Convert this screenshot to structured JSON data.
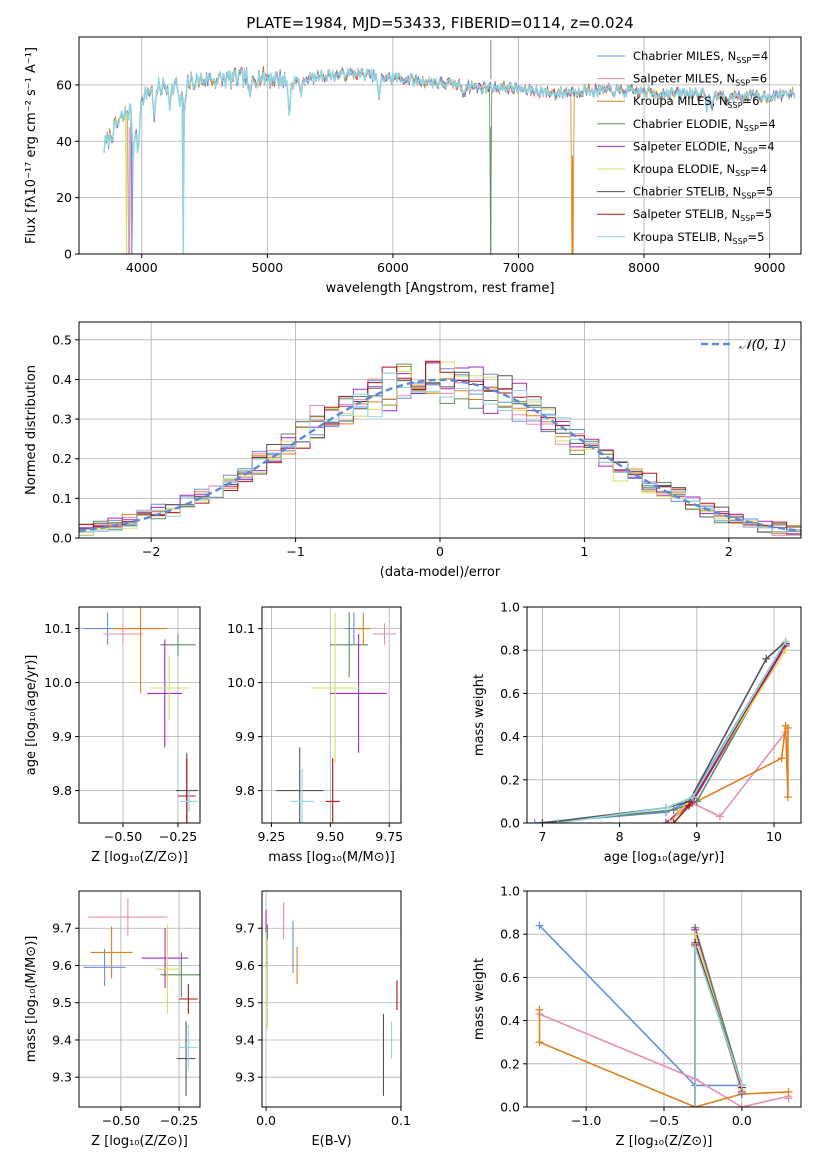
{
  "title": "PLATE=1984, MJD=53433, FIBERID=0114, z=0.024",
  "models": [
    {
      "name": "Chabrier MILES, N_SSP=4",
      "base": "Chabrier MILES, N",
      "sub": "SSP",
      "suffix": "=4",
      "color": "#6a8fdc"
    },
    {
      "name": "Salpeter MILES, N_SSP=6",
      "base": "Salpeter MILES, N",
      "sub": "SSP",
      "suffix": "=6",
      "color": "#e58fb5"
    },
    {
      "name": "Kroupa MILES, N_SSP=6",
      "base": "Kroupa MILES, N",
      "sub": "SSP",
      "suffix": "=6",
      "color": "#e0801c"
    },
    {
      "name": "Chabrier ELODIE, N_SSP=4",
      "base": "Chabrier ELODIE, N",
      "sub": "SSP",
      "suffix": "=4",
      "color": "#5f8c5f"
    },
    {
      "name": "Salpeter ELODIE, N_SSP=4",
      "base": "Salpeter ELODIE, N",
      "sub": "SSP",
      "suffix": "=4",
      "color": "#a52ac0"
    },
    {
      "name": "Kroupa ELODIE, N_SSP=4",
      "base": "Kroupa ELODIE, N",
      "sub": "SSP",
      "suffix": "=4",
      "color": "#d7df5c"
    },
    {
      "name": "Chabrier STELIB, N_SSP=5",
      "base": "Chabrier STELIB, N",
      "sub": "SSP",
      "suffix": "=5",
      "color": "#555555"
    },
    {
      "name": "Salpeter STELIB, N_SSP=5",
      "base": "Salpeter STELIB, N",
      "sub": "SSP",
      "suffix": "=5",
      "color": "#b01515"
    },
    {
      "name": "Kroupa STELIB, N_SSP=5",
      "base": "Kroupa STELIB, N",
      "sub": "SSP",
      "suffix": "=5",
      "color": "#8fd6e0"
    }
  ],
  "chart_data": [
    {
      "id": "spectrum",
      "type": "line",
      "xlabel": "wavelength [Angstrom, rest frame]",
      "ylabel": "Flux [fλ10⁻¹⁷ erg cm⁻² s⁻¹ A⁻¹]",
      "xlim": [
        3500,
        9250
      ],
      "ylim": [
        0,
        77
      ],
      "xticks": [
        4000,
        5000,
        6000,
        7000,
        8000,
        9000
      ],
      "yticks": [
        0,
        20,
        40,
        60
      ],
      "x_range": [
        3700,
        9200
      ],
      "continuum": [
        [
          3700,
          38
        ],
        [
          3750,
          42
        ],
        [
          3820,
          47
        ],
        [
          3900,
          51
        ],
        [
          3960,
          50
        ],
        [
          4050,
          58
        ],
        [
          4150,
          59
        ],
        [
          4300,
          60
        ],
        [
          4500,
          62
        ],
        [
          4700,
          62
        ],
        [
          4900,
          63
        ],
        [
          5100,
          62
        ],
        [
          5200,
          61
        ],
        [
          5400,
          63
        ],
        [
          5700,
          64
        ],
        [
          5900,
          63
        ],
        [
          6100,
          62
        ],
        [
          6300,
          61
        ],
        [
          6500,
          60
        ],
        [
          6700,
          59
        ],
        [
          6900,
          59
        ],
        [
          7100,
          58
        ],
        [
          7300,
          57
        ],
        [
          7500,
          58
        ],
        [
          7800,
          58
        ],
        [
          8100,
          57
        ],
        [
          8400,
          57
        ],
        [
          8700,
          56
        ],
        [
          9000,
          56
        ],
        [
          9200,
          57
        ]
      ],
      "absorption_lines": [
        [
          3934,
          16
        ],
        [
          3969,
          14
        ],
        [
          4102,
          9
        ],
        [
          4227,
          5
        ],
        [
          4306,
          8
        ],
        [
          4340,
          12
        ],
        [
          4861,
          9
        ],
        [
          5175,
          10
        ],
        [
          5270,
          4
        ],
        [
          5890,
          8
        ],
        [
          6563,
          3
        ],
        [
          8498,
          4
        ],
        [
          8542,
          5
        ],
        [
          8662,
          4
        ]
      ],
      "peaks": [
        [
          6780,
          76
        ]
      ],
      "edge_drops": [
        [
          0,
          3920,
          40
        ],
        [
          1,
          3900,
          45
        ],
        [
          5,
          3880,
          50
        ],
        [
          8,
          4330,
          55
        ],
        [
          2,
          7430,
          35
        ],
        [
          3,
          6780,
          45
        ]
      ]
    },
    {
      "id": "residual-histogram",
      "type": "histogram",
      "xlabel": "(data-model)/error",
      "ylabel": "Normed distribution",
      "xlim": [
        -2.5,
        2.5
      ],
      "ylim": [
        0,
        0.545
      ],
      "xticks": [
        -2,
        -1,
        0,
        1,
        2
      ],
      "yticks": [
        0.0,
        0.1,
        0.2,
        0.3,
        0.4,
        0.5
      ],
      "bin_width": 0.1,
      "reference_curve": {
        "label": "N(0,1)",
        "label_tex": "𝒩(0, 1)",
        "mean": 0,
        "sigma": 1,
        "color": "#5b8ad8"
      }
    },
    {
      "id": "age-vs-Z",
      "type": "errorbar",
      "xlabel": "Z [log₁₀(Z/Z⊙)]",
      "ylabel": "age  [log₁₀(age/yr)]",
      "xlim": [
        -0.7,
        -0.15
      ],
      "ylim": [
        9.74,
        10.14
      ],
      "xticks": [
        -0.5,
        -0.25
      ],
      "yticks": [
        9.8,
        9.9,
        10.0,
        10.1
      ],
      "points": [
        {
          "m": 0,
          "x": -0.57,
          "y": 10.1,
          "xerr": 0.11,
          "yerr": 0.03
        },
        {
          "m": 1,
          "x": -0.5,
          "y": 10.09,
          "xerr": 0.09,
          "yerr": 0.02
        },
        {
          "m": 2,
          "x": -0.42,
          "y": 10.1,
          "xerr": 0.12,
          "yerr": 0.12
        },
        {
          "m": 3,
          "x": -0.25,
          "y": 10.07,
          "xerr": 0.08,
          "yerr": 0.02
        },
        {
          "m": 4,
          "x": -0.31,
          "y": 9.98,
          "xerr": 0.08,
          "yerr": 0.1
        },
        {
          "m": 5,
          "x": -0.29,
          "y": 9.99,
          "xerr": 0.09,
          "yerr": 0.06
        },
        {
          "m": 6,
          "x": -0.21,
          "y": 9.8,
          "xerr": 0.05,
          "yerr": 0.07
        },
        {
          "m": 7,
          "x": -0.21,
          "y": 9.79,
          "xerr": 0.04,
          "yerr": 0.07
        },
        {
          "m": 8,
          "x": -0.2,
          "y": 9.78,
          "xerr": 0.04,
          "yerr": 0.02
        }
      ]
    },
    {
      "id": "age-vs-mass",
      "type": "errorbar",
      "xlabel": "mass [log₁₀(M/M⊙)]",
      "ylabel": "",
      "xlim": [
        9.21,
        9.8
      ],
      "ylim": [
        9.74,
        10.14
      ],
      "xticks": [
        9.25,
        9.5,
        9.75
      ],
      "yticks": [
        9.8,
        9.9,
        10.0,
        10.1
      ],
      "points": [
        {
          "m": 0,
          "x": 9.6,
          "y": 10.1,
          "xerr": 0.04,
          "yerr": 0.03
        },
        {
          "m": 1,
          "x": 9.73,
          "y": 10.09,
          "xerr": 0.05,
          "yerr": 0.02
        },
        {
          "m": 2,
          "x": 9.64,
          "y": 10.1,
          "xerr": 0.03,
          "yerr": 0.03
        },
        {
          "m": 3,
          "x": 9.58,
          "y": 10.07,
          "xerr": 0.08,
          "yerr": 0.06
        },
        {
          "m": 4,
          "x": 9.62,
          "y": 9.98,
          "xerr": 0.12,
          "yerr": 0.11
        },
        {
          "m": 5,
          "x": 9.52,
          "y": 9.99,
          "xerr": 0.1,
          "yerr": 0.14
        },
        {
          "m": 6,
          "x": 9.37,
          "y": 9.8,
          "xerr": 0.1,
          "yerr": 0.08
        },
        {
          "m": 7,
          "x": 9.51,
          "y": 9.78,
          "xerr": 0.03,
          "yerr": 0.08
        },
        {
          "m": 8,
          "x": 9.38,
          "y": 9.78,
          "xerr": 0.05,
          "yerr": 0.06
        }
      ]
    },
    {
      "id": "massweight-vs-age",
      "type": "line",
      "xlabel": "age  [log₁₀(age/yr)]",
      "ylabel": "mass weight",
      "xlim": [
        6.8,
        10.35
      ],
      "ylim": [
        0,
        1
      ],
      "xticks": [
        7,
        8,
        9,
        10
      ],
      "yticks": [
        0.0,
        0.2,
        0.4,
        0.6,
        0.8,
        1.0
      ],
      "series": [
        {
          "m": 0,
          "x": [
            6.9,
            8.6,
            8.9,
            10.15
          ],
          "y": [
            0.0,
            0.05,
            0.1,
            0.84
          ]
        },
        {
          "m": 1,
          "x": [
            8.6,
            8.9,
            9.3,
            10.15
          ],
          "y": [
            0.0,
            0.1,
            0.03,
            0.42
          ]
        },
        {
          "m": 2,
          "x": [
            8.6,
            9.0,
            10.1,
            10.15,
            10.18,
            10.18
          ],
          "y": [
            0.0,
            0.1,
            0.3,
            0.45,
            0.12,
            0.44
          ]
        },
        {
          "m": 3,
          "x": [
            7.0,
            8.7,
            9.0,
            10.15
          ],
          "y": [
            0.0,
            0.06,
            0.1,
            0.83
          ]
        },
        {
          "m": 4,
          "x": [
            8.6,
            8.95,
            10.15
          ],
          "y": [
            0.0,
            0.1,
            0.82
          ]
        },
        {
          "m": 5,
          "x": [
            8.65,
            8.95,
            10.15
          ],
          "y": [
            0.0,
            0.12,
            0.8
          ]
        },
        {
          "m": 6,
          "x": [
            7.0,
            8.6,
            8.9,
            9.9,
            10.15
          ],
          "y": [
            0.0,
            0.07,
            0.1,
            0.76,
            0.84
          ]
        },
        {
          "m": 7,
          "x": [
            8.7,
            8.9,
            10.15
          ],
          "y": [
            0.0,
            0.08,
            0.83
          ]
        },
        {
          "m": 8,
          "x": [
            7.2,
            8.6,
            8.95,
            10.15
          ],
          "y": [
            0.0,
            0.07,
            0.12,
            0.84
          ]
        }
      ]
    },
    {
      "id": "mass-vs-Z",
      "type": "errorbar",
      "xlabel": "Z [log₁₀(Z/Z⊙)]",
      "ylabel": "mass [log₁₀(M/M⊙)]",
      "xlim": [
        -0.68,
        -0.16
      ],
      "ylim": [
        9.22,
        9.8
      ],
      "xticks": [
        -0.5,
        -0.25
      ],
      "yticks": [
        9.3,
        9.4,
        9.5,
        9.6,
        9.7
      ],
      "points": [
        {
          "m": 0,
          "x": -0.57,
          "y": 9.595,
          "xerr": 0.09,
          "yerr": 0.05
        },
        {
          "m": 1,
          "x": -0.47,
          "y": 9.73,
          "xerr": 0.17,
          "yerr": 0.05
        },
        {
          "m": 2,
          "x": -0.54,
          "y": 9.635,
          "xerr": 0.09,
          "yerr": 0.07
        },
        {
          "m": 3,
          "x": -0.24,
          "y": 9.575,
          "xerr": 0.09,
          "yerr": 0.06
        },
        {
          "m": 4,
          "x": -0.31,
          "y": 9.62,
          "xerr": 0.1,
          "yerr": 0.08
        },
        {
          "m": 5,
          "x": -0.3,
          "y": 9.59,
          "xerr": 0.05,
          "yerr": 0.12
        },
        {
          "m": 6,
          "x": -0.22,
          "y": 9.35,
          "xerr": 0.04,
          "yerr": 0.1
        },
        {
          "m": 7,
          "x": -0.21,
          "y": 9.51,
          "xerr": 0.04,
          "yerr": 0.04
        },
        {
          "m": 8,
          "x": -0.21,
          "y": 9.38,
          "xerr": 0.04,
          "yerr": 0.06
        }
      ]
    },
    {
      "id": "mass-vs-EBV",
      "type": "errorbar",
      "xlabel": "E(B-V)",
      "ylabel": "",
      "xlim": [
        -0.003,
        0.1
      ],
      "ylim": [
        9.22,
        9.8
      ],
      "xticks": [
        0.0,
        0.1
      ],
      "yticks": [
        9.3,
        9.4,
        9.5,
        9.6,
        9.7
      ],
      "points": [
        {
          "m": 0,
          "x": 0.02,
          "y": 9.65,
          "xerr": 0,
          "yerr": 0.07
        },
        {
          "m": 1,
          "x": 0.013,
          "y": 9.72,
          "xerr": 0,
          "yerr": 0.05
        },
        {
          "m": 2,
          "x": 0.023,
          "y": 9.6,
          "xerr": 0,
          "yerr": 0.05
        },
        {
          "m": 3,
          "x": 0.001,
          "y": 9.65,
          "xerr": 0,
          "yerr": 0.06
        },
        {
          "m": 4,
          "x": 0.0,
          "y": 9.72,
          "xerr": 0,
          "yerr": 0.03
        },
        {
          "m": 5,
          "x": 0.001,
          "y": 9.55,
          "xerr": 0,
          "yerr": 0.12
        },
        {
          "m": 6,
          "x": 0.087,
          "y": 9.36,
          "xerr": 0,
          "yerr": 0.11
        },
        {
          "m": 7,
          "x": 0.097,
          "y": 9.52,
          "xerr": 0,
          "yerr": 0.04
        },
        {
          "m": 8,
          "x": 0.093,
          "y": 9.4,
          "xerr": 0,
          "yerr": 0.05
        }
      ]
    },
    {
      "id": "massweight-vs-Z",
      "type": "line",
      "xlabel": "Z [log₁₀(Z/Z⊙)]",
      "ylabel": "mass weight",
      "xlim": [
        -1.38,
        0.38
      ],
      "ylim": [
        0,
        1
      ],
      "xticks": [
        -1.0,
        -0.5,
        0.0
      ],
      "yticks": [
        0.0,
        0.2,
        0.4,
        0.6,
        0.8,
        1.0
      ],
      "series": [
        {
          "m": 0,
          "x": [
            -1.3,
            -0.3,
            0.0,
            0.0
          ],
          "y": [
            0.84,
            0.1,
            0.1,
            0.06
          ]
        },
        {
          "m": 1,
          "x": [
            -1.3,
            -0.3,
            0.0,
            0.3,
            0.3
          ],
          "y": [
            0.43,
            0.13,
            0.0,
            0.05,
            0.04
          ]
        },
        {
          "m": 2,
          "x": [
            -1.3,
            -1.3,
            -0.3,
            0.0,
            0.3
          ],
          "y": [
            0.45,
            0.3,
            0.0,
            0.06,
            0.07
          ]
        },
        {
          "m": 3,
          "x": [
            -0.3,
            -0.3,
            0.0,
            0.0
          ],
          "y": [
            0.0,
            0.83,
            0.1,
            0.06
          ]
        },
        {
          "m": 4,
          "x": [
            -0.3,
            -0.3,
            0.0
          ],
          "y": [
            0.0,
            0.82,
            0.07
          ]
        },
        {
          "m": 5,
          "x": [
            -0.3,
            -0.3,
            0.0
          ],
          "y": [
            0.0,
            0.8,
            0.08
          ]
        },
        {
          "m": 6,
          "x": [
            -0.3,
            -0.3,
            0.0
          ],
          "y": [
            0.0,
            0.76,
            0.1
          ]
        },
        {
          "m": 7,
          "x": [
            -0.3,
            -0.3,
            0.0
          ],
          "y": [
            0.0,
            0.75,
            0.09
          ]
        },
        {
          "m": 8,
          "x": [
            -0.3,
            -0.3,
            0.0
          ],
          "y": [
            0.0,
            0.74,
            0.1
          ]
        }
      ]
    }
  ]
}
